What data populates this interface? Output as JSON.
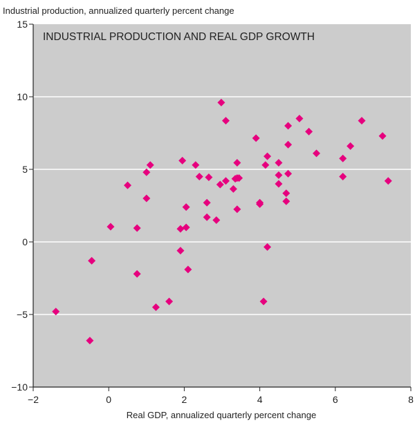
{
  "chart_data": {
    "type": "scatter",
    "title": "INDUSTRIAL PRODUCTION AND REAL GDP GROWTH",
    "ylabel": "Industrial production, annualized quarterly percent change",
    "xlabel": "Real GDP, annualized quarterly percent change",
    "xlim": [
      -2,
      8
    ],
    "ylim": [
      -10,
      15
    ],
    "x_ticks": [
      -2,
      0,
      2,
      4,
      6,
      8
    ],
    "x_tick_labels": [
      "−2",
      "0",
      "2",
      "4",
      "6",
      "8"
    ],
    "y_ticks": [
      -10,
      -5,
      0,
      5,
      10,
      15
    ],
    "y_tick_labels": [
      "−10",
      "−5",
      "0",
      "5",
      "10",
      "15"
    ],
    "grid": "horizontal",
    "marker": "diamond",
    "colors": {
      "plot_background": "#cccccc",
      "marker": "#e6007e",
      "gridline": "#ffffff"
    },
    "points": [
      {
        "x": -1.4,
        "y": -4.8
      },
      {
        "x": -0.5,
        "y": -6.8
      },
      {
        "x": -0.45,
        "y": -1.3
      },
      {
        "x": 0.05,
        "y": 1.05
      },
      {
        "x": 0.5,
        "y": 3.9
      },
      {
        "x": 0.75,
        "y": 0.95
      },
      {
        "x": 0.75,
        "y": -2.2
      },
      {
        "x": 1.0,
        "y": 4.8
      },
      {
        "x": 1.0,
        "y": 3.0
      },
      {
        "x": 1.1,
        "y": 5.3
      },
      {
        "x": 1.25,
        "y": -4.5
      },
      {
        "x": 1.6,
        "y": -4.1
      },
      {
        "x": 1.9,
        "y": 0.9
      },
      {
        "x": 1.9,
        "y": -0.6
      },
      {
        "x": 1.95,
        "y": 5.6
      },
      {
        "x": 2.05,
        "y": 1.0
      },
      {
        "x": 2.05,
        "y": 2.4
      },
      {
        "x": 2.1,
        "y": -1.9
      },
      {
        "x": 2.3,
        "y": 5.3
      },
      {
        "x": 2.4,
        "y": 4.5
      },
      {
        "x": 2.6,
        "y": 2.7
      },
      {
        "x": 2.6,
        "y": 1.7
      },
      {
        "x": 2.65,
        "y": 4.45
      },
      {
        "x": 2.85,
        "y": 1.5
      },
      {
        "x": 2.95,
        "y": 3.95
      },
      {
        "x": 2.98,
        "y": 9.6
      },
      {
        "x": 3.1,
        "y": 8.35
      },
      {
        "x": 3.1,
        "y": 4.2
      },
      {
        "x": 3.3,
        "y": 3.65
      },
      {
        "x": 3.35,
        "y": 4.35
      },
      {
        "x": 3.4,
        "y": 4.4
      },
      {
        "x": 3.4,
        "y": 5.45
      },
      {
        "x": 3.4,
        "y": 2.25
      },
      {
        "x": 3.45,
        "y": 4.4
      },
      {
        "x": 3.9,
        "y": 7.15
      },
      {
        "x": 4.0,
        "y": 2.6
      },
      {
        "x": 4.0,
        "y": 2.7
      },
      {
        "x": 4.1,
        "y": -4.1
      },
      {
        "x": 4.15,
        "y": 5.3
      },
      {
        "x": 4.2,
        "y": 5.9
      },
      {
        "x": 4.2,
        "y": -0.35
      },
      {
        "x": 4.5,
        "y": 5.45
      },
      {
        "x": 4.5,
        "y": 4.0
      },
      {
        "x": 4.5,
        "y": 4.6
      },
      {
        "x": 4.7,
        "y": 3.35
      },
      {
        "x": 4.7,
        "y": 2.8
      },
      {
        "x": 4.75,
        "y": 8.0
      },
      {
        "x": 4.75,
        "y": 6.7
      },
      {
        "x": 4.75,
        "y": 4.7
      },
      {
        "x": 5.05,
        "y": 8.5
      },
      {
        "x": 5.3,
        "y": 7.6
      },
      {
        "x": 5.5,
        "y": 6.1
      },
      {
        "x": 6.2,
        "y": 5.75
      },
      {
        "x": 6.2,
        "y": 4.5
      },
      {
        "x": 6.4,
        "y": 6.6
      },
      {
        "x": 6.7,
        "y": 8.35
      },
      {
        "x": 7.25,
        "y": 7.3
      },
      {
        "x": 7.4,
        "y": 4.2
      }
    ]
  }
}
